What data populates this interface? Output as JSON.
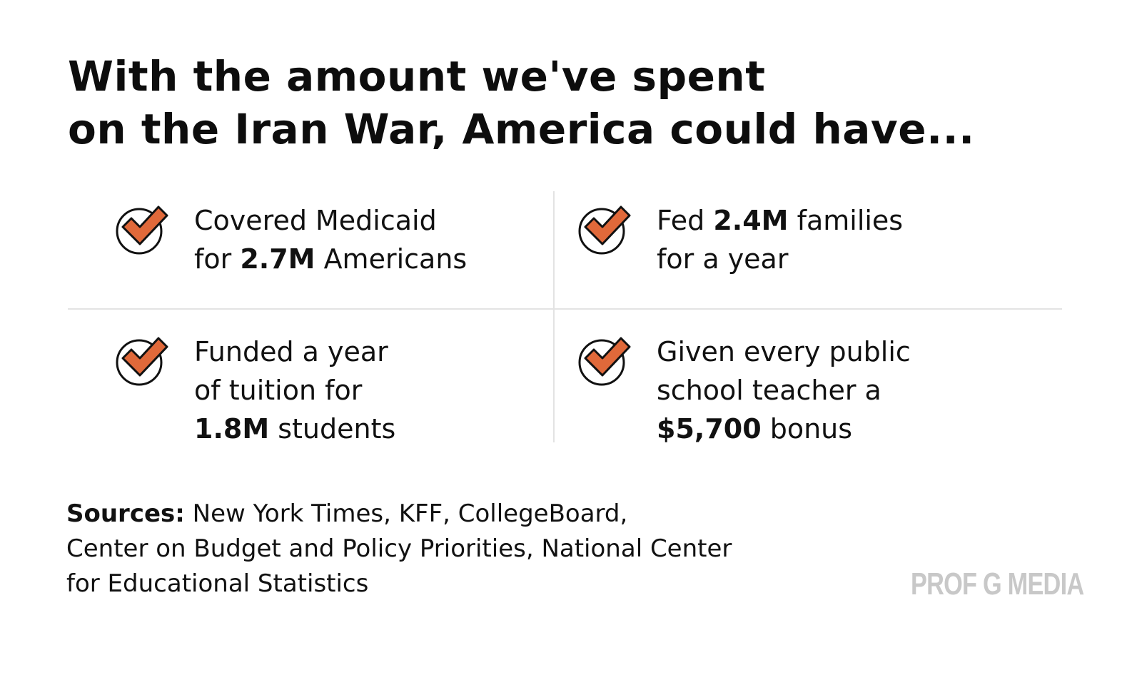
{
  "title": {
    "line1": "With the amount we've spent",
    "line2": "on the Iran War, America could have..."
  },
  "items": [
    {
      "icon": "check-circle-icon",
      "line1_pre": "Covered Medicaid",
      "line2_pre": "for ",
      "line2_bold": "2.7M",
      "line2_post": " Americans"
    },
    {
      "icon": "check-circle-icon",
      "line1_pre": "Fed ",
      "line1_bold": "2.4M",
      "line1_post": " families",
      "line2_pre": "for a year"
    },
    {
      "icon": "check-circle-icon",
      "line1_pre": "Funded a year",
      "line2_pre": "of tuition for",
      "line3_bold": "1.8M",
      "line3_post": " students"
    },
    {
      "icon": "check-circle-icon",
      "line1_pre": "Given every public",
      "line2_pre": "school teacher a",
      "line3_bold": "$5,700",
      "line3_post": " bonus"
    }
  ],
  "sources": {
    "label": "Sources:",
    "line1_text": " New York Times, KFF, CollegeBoard,",
    "line2_text": "Center on Budget and Policy Priorities, National Center",
    "line3_text": "for Educational Statistics"
  },
  "brand": "PROF G MEDIA",
  "colors": {
    "accent": "#e0693a",
    "text": "#111111",
    "divider": "#e3e3e3",
    "brand": "#c8c8c8"
  }
}
